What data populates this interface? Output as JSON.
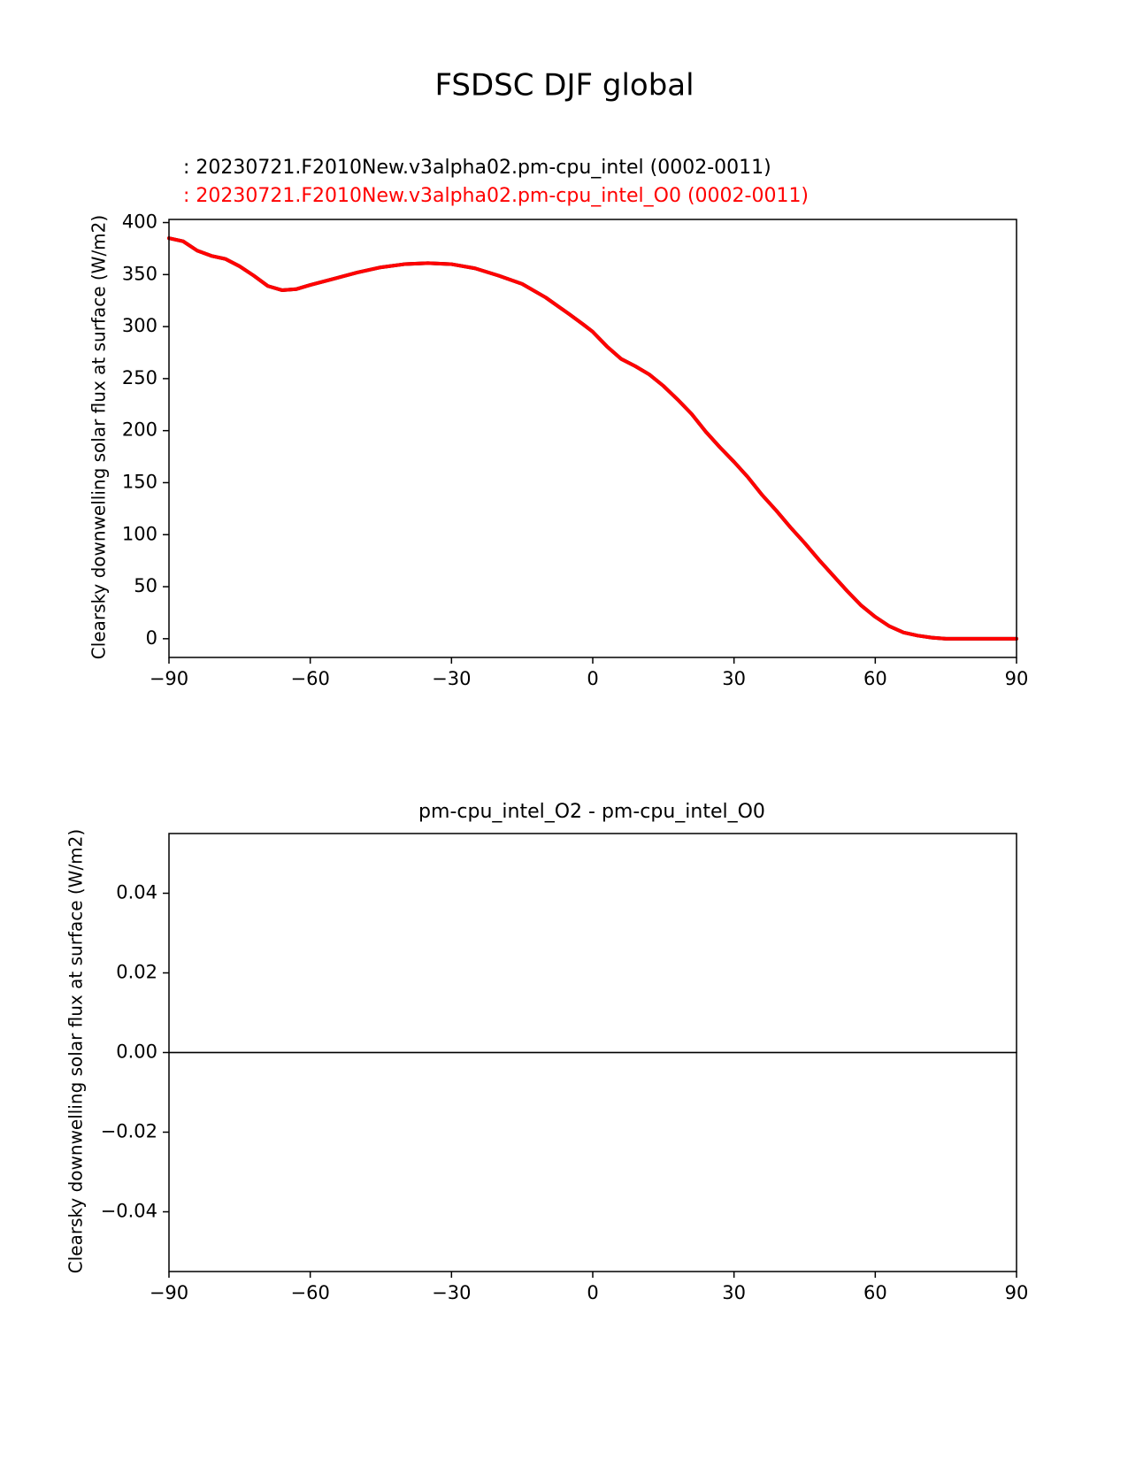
{
  "figure": {
    "suptitle": "FSDSC DJF global"
  },
  "colors": {
    "test": "#000000",
    "reference": "#ff0000",
    "zero_line": "#808080",
    "axes": "#000000"
  },
  "chart_data": [
    {
      "type": "line",
      "id": "top",
      "ylabel": "Clearsky downwelling solar flux at surface (W/m2)",
      "xlabel": "",
      "title_lines": [
        {
          "text": ": 20230721.F2010New.v3alpha02.pm-cpu_intel (0002-0011)",
          "color": "#000000"
        },
        {
          "text": ": 20230721.F2010New.v3alpha02.pm-cpu_intel_O0 (0002-0011)",
          "color": "#ff0000"
        }
      ],
      "xlim": [
        -90,
        90
      ],
      "ylim": [
        -18,
        403
      ],
      "xticks": [
        -90,
        -60,
        -30,
        0,
        30,
        60,
        90
      ],
      "xtick_labels": [
        "−90",
        "−60",
        "−30",
        "0",
        "30",
        "60",
        "90"
      ],
      "yticks": [
        0,
        50,
        100,
        150,
        200,
        250,
        300,
        350,
        400
      ],
      "ytick_labels": [
        "0",
        "50",
        "100",
        "150",
        "200",
        "250",
        "300",
        "350",
        "400"
      ],
      "grid": false,
      "series": [
        {
          "color": "#000000",
          "x": [
            -90,
            -87,
            -84,
            -81,
            -78,
            -75,
            -72,
            -69,
            -66,
            -63,
            -60,
            -55,
            -50,
            -45,
            -40,
            -35,
            -30,
            -25,
            -20,
            -15,
            -10,
            -5,
            -2,
            0,
            3,
            6,
            9,
            12,
            15,
            18,
            21,
            24,
            27,
            30,
            33,
            36,
            39,
            42,
            45,
            48,
            51,
            54,
            57,
            60,
            63,
            66,
            69,
            72,
            75,
            78,
            81,
            84,
            87,
            90
          ],
          "y": [
            385,
            382,
            373,
            368,
            365,
            358,
            349,
            339,
            335,
            336,
            340,
            346,
            352,
            357,
            360,
            361,
            360,
            356,
            349,
            341,
            328,
            312,
            302,
            295,
            281,
            269,
            262,
            254,
            243,
            230,
            216,
            199,
            184,
            170,
            155,
            138,
            123,
            107,
            92,
            76,
            61,
            46,
            32,
            21,
            12,
            6,
            3,
            1,
            0,
            0,
            0,
            0,
            0,
            0
          ]
        },
        {
          "color": "#ff0000",
          "x": [
            -90,
            -87,
            -84,
            -81,
            -78,
            -75,
            -72,
            -69,
            -66,
            -63,
            -60,
            -55,
            -50,
            -45,
            -40,
            -35,
            -30,
            -25,
            -20,
            -15,
            -10,
            -5,
            -2,
            0,
            3,
            6,
            9,
            12,
            15,
            18,
            21,
            24,
            27,
            30,
            33,
            36,
            39,
            42,
            45,
            48,
            51,
            54,
            57,
            60,
            63,
            66,
            69,
            72,
            75,
            78,
            81,
            84,
            87,
            90
          ],
          "y": [
            385,
            382,
            373,
            368,
            365,
            358,
            349,
            339,
            335,
            336,
            340,
            346,
            352,
            357,
            360,
            361,
            360,
            356,
            349,
            341,
            328,
            312,
            302,
            295,
            281,
            269,
            262,
            254,
            243,
            230,
            216,
            199,
            184,
            170,
            155,
            138,
            123,
            107,
            92,
            76,
            61,
            46,
            32,
            21,
            12,
            6,
            3,
            1,
            0,
            0,
            0,
            0,
            0,
            0
          ]
        }
      ]
    },
    {
      "type": "line",
      "id": "bottom",
      "title": "pm-cpu_intel_O2 - pm-cpu_intel_O0",
      "ylabel": "Clearsky downwelling solar flux at surface (W/m2)",
      "xlabel": "",
      "xlim": [
        -90,
        90
      ],
      "ylim": [
        -0.055,
        0.055
      ],
      "xticks": [
        -90,
        -60,
        -30,
        0,
        30,
        60,
        90
      ],
      "xtick_labels": [
        "−90",
        "−60",
        "−30",
        "0",
        "30",
        "60",
        "90"
      ],
      "yticks": [
        -0.04,
        -0.02,
        0.0,
        0.02,
        0.04
      ],
      "ytick_labels": [
        "−0.04",
        "−0.02",
        "0.00",
        "0.02",
        "0.04"
      ],
      "grid": false,
      "zero_line": true,
      "series": [
        {
          "color": "#000000",
          "x": [
            -90,
            90
          ],
          "y": [
            0,
            0
          ]
        }
      ]
    }
  ]
}
